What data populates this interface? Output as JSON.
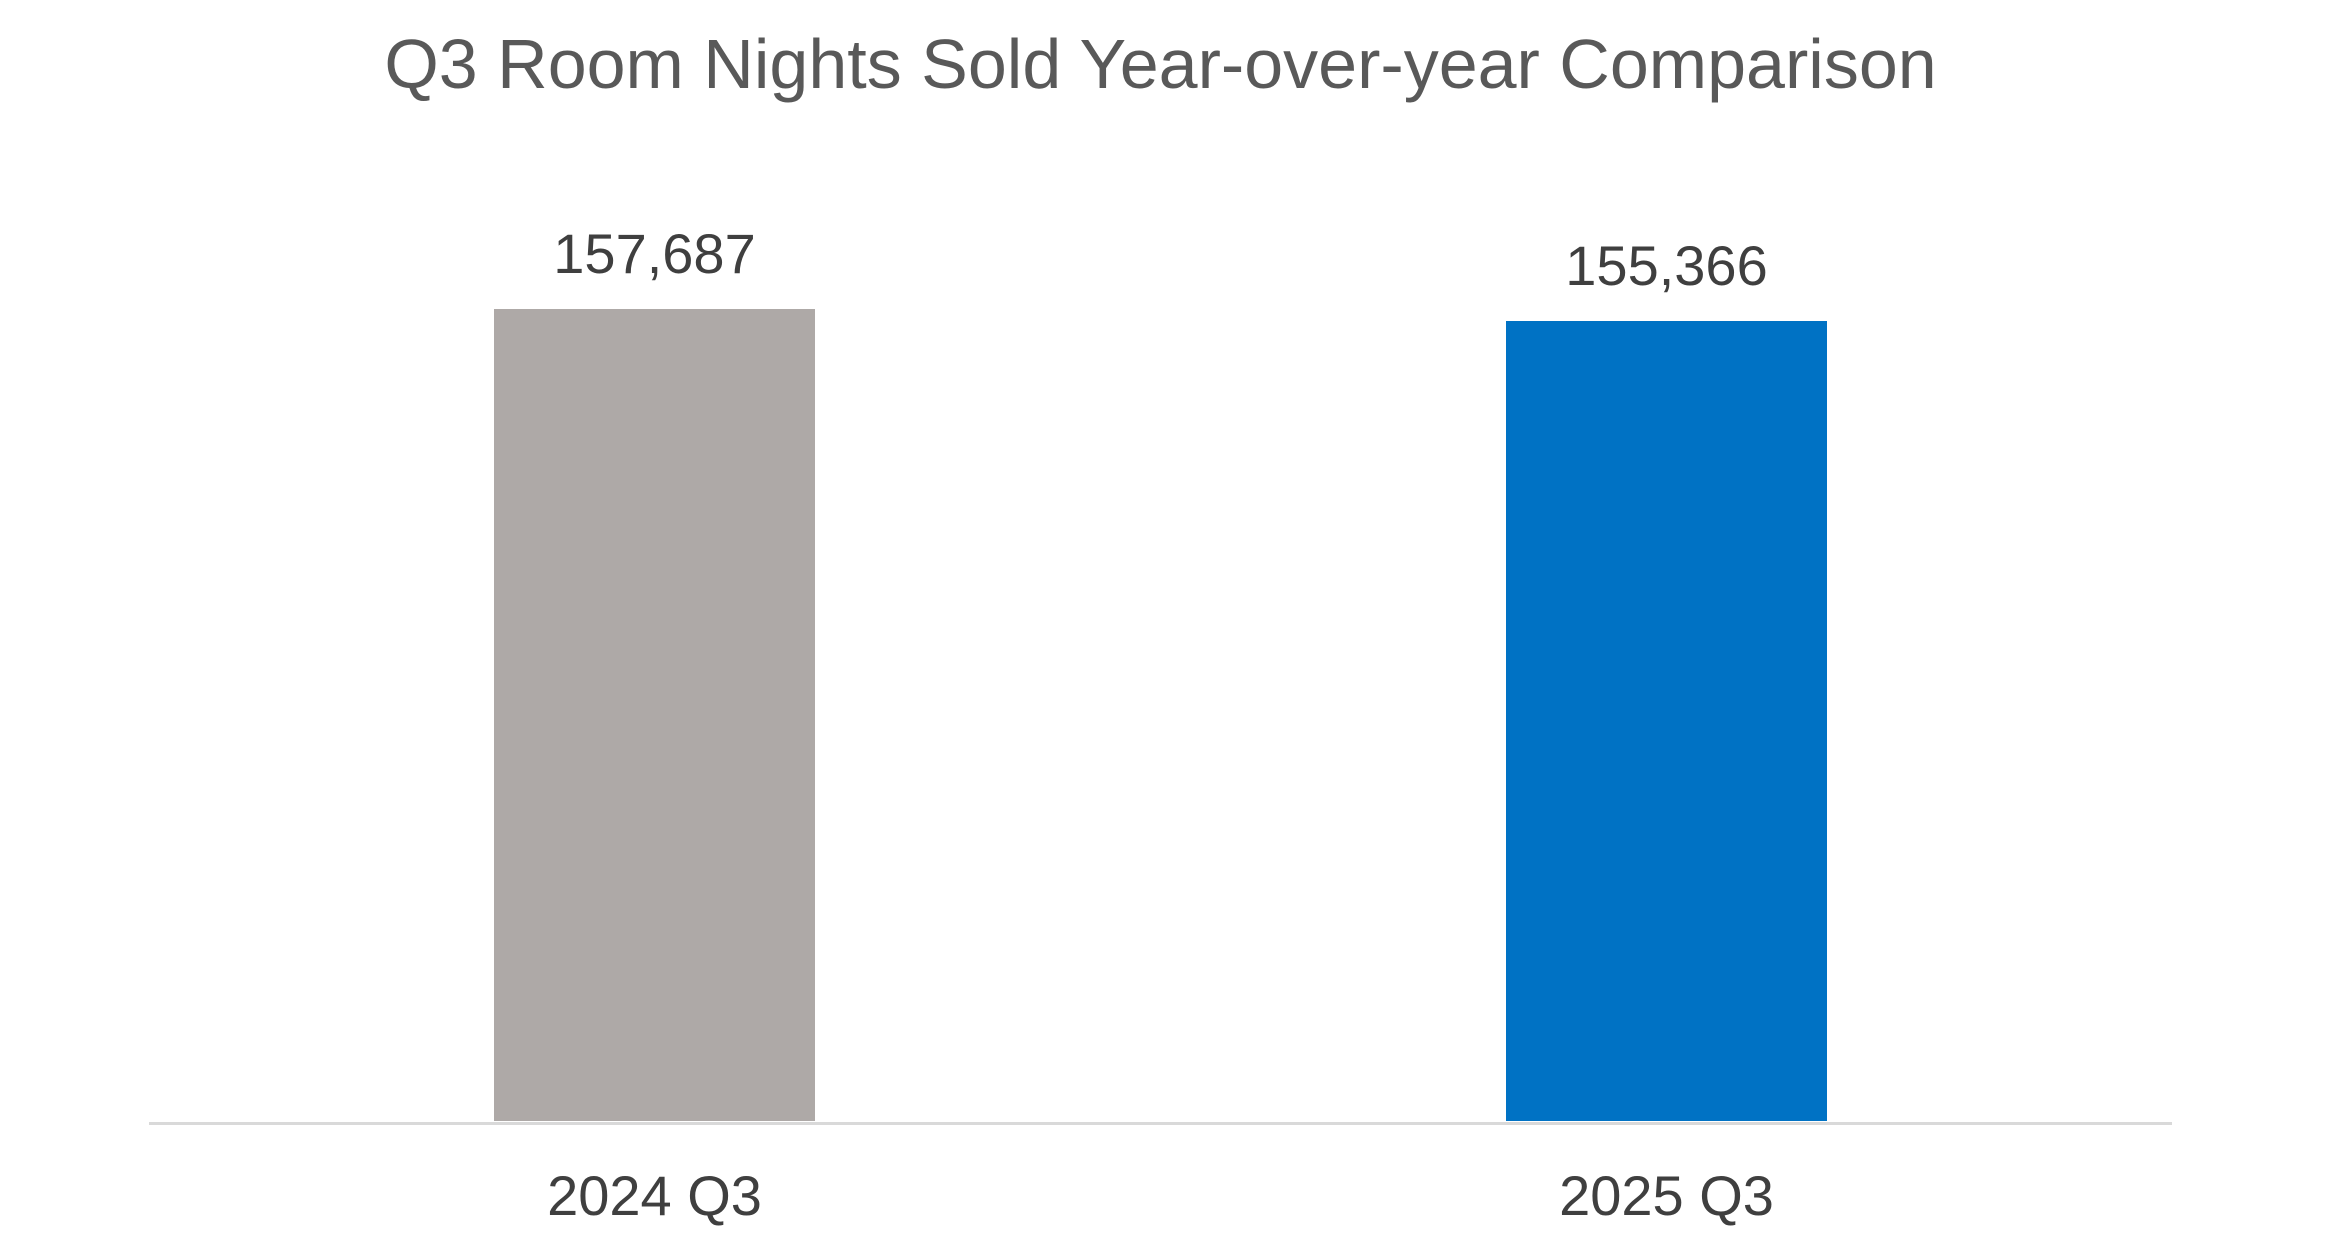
{
  "title": "Q3 Room Nights Sold Year-over-year Comparison",
  "chart_data": {
    "type": "bar",
    "title": "Q3 Room Nights Sold Year-over-year Comparison",
    "categories": [
      "2024 Q3",
      "2025 Q3"
    ],
    "values": [
      157687,
      155366
    ],
    "value_labels": [
      "157,687",
      "155,366"
    ],
    "bar_colors": [
      "#AEA9A7",
      "#0072C4"
    ],
    "xlabel": "",
    "ylabel": "",
    "ylim": [
      0,
      160000
    ],
    "grid": false,
    "legend": false,
    "data_label_position": "outside-end"
  },
  "colors": {
    "background": "#FFFFFF",
    "title_text": "#595959",
    "label_text": "#3F3F3F",
    "axis_line": "#D9D9D9"
  }
}
